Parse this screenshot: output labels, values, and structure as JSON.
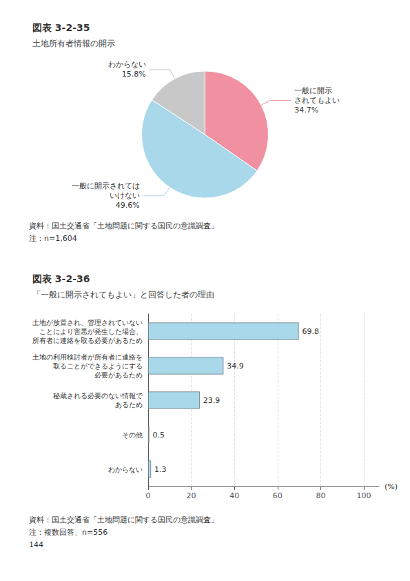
{
  "chart_data": [
    {
      "type": "pie",
      "title": "図表 3-2-35",
      "subtitle": "土地所有者情報の開示",
      "categories": [
        "一般に開示\nされてもよい",
        "一般に開示されては\nいけない",
        "わからない"
      ],
      "values": [
        34.7,
        49.6,
        15.8
      ],
      "value_labels": [
        "34.7%",
        "49.6%",
        "15.8%"
      ],
      "colors": [
        "#f090a0",
        "#a8d8ea",
        "#c8c8c8"
      ],
      "data_labels": true,
      "annotations": [
        "資料：国土交通省「土地問題に関する国民の意識調査」",
        "注：n=1,604"
      ]
    },
    {
      "type": "bar",
      "title": "図表 3-2-36",
      "subtitle": "「一般に開示されてもよい」と回答した者の理由",
      "orientation": "horizontal",
      "categories": [
        "土地が放置され、管理されていない\nことにより害悪が発生した場合、\n所有者に連絡を取る必要があるため",
        "土地の利用検討者が所有者に連絡を\n取ることができるようにする\n必要があるため",
        "秘蔵される必要のない情報で\nあるため",
        "その他",
        "わからない"
      ],
      "values": [
        69.8,
        34.9,
        23.9,
        0.5,
        1.3
      ],
      "color": "#a8d8ea",
      "xlabel": "(%)",
      "xlim": [
        0,
        107
      ],
      "xticks": [
        0,
        20,
        40,
        60,
        80,
        100
      ],
      "grid": true,
      "data_labels": true,
      "annotations": [
        "資料：国土交通省「土地問題に関する国民の意識調査」",
        "注：複数回答、n=556",
        "144"
      ]
    }
  ]
}
